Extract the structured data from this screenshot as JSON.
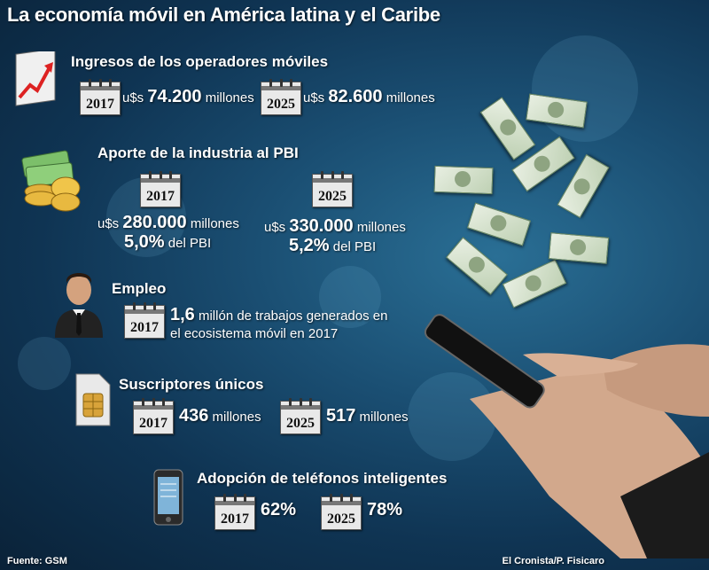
{
  "title": "La economía móvil en América latina y el Caribe",
  "sections": {
    "ingresos": {
      "title": "Ingresos de los operadores móviles",
      "items": [
        {
          "year": "2017",
          "prefix": "u$s",
          "value": "74.200",
          "suffix": "millones"
        },
        {
          "year": "2025",
          "prefix": "u$s",
          "value": "82.600",
          "suffix": "millones"
        }
      ]
    },
    "aporte": {
      "title": "Aporte de la industria al PBI",
      "items": [
        {
          "year": "2017",
          "prefix": "u$s",
          "value": "280.000",
          "suffix": "millones",
          "pct": "5,0%",
          "pct_suffix": "del PBI"
        },
        {
          "year": "2025",
          "prefix": "u$s",
          "value": "330.000",
          "suffix": "millones",
          "pct": "5,2%",
          "pct_suffix": "del PBI"
        }
      ]
    },
    "empleo": {
      "title": "Empleo",
      "year": "2017",
      "line1_value": "1,6",
      "line1_rest": "millón de trabajos generados en",
      "line2": "el ecosistema móvil en 2017"
    },
    "suscriptores": {
      "title": "Suscriptores únicos",
      "items": [
        {
          "year": "2017",
          "value": "436",
          "suffix": "millones"
        },
        {
          "year": "2025",
          "value": "517",
          "suffix": "millones"
        }
      ]
    },
    "adopcion": {
      "title": "Adopción de teléfonos inteligentes",
      "items": [
        {
          "year": "2017",
          "value": "62%"
        },
        {
          "year": "2025",
          "value": "78%"
        }
      ]
    }
  },
  "footer": {
    "source_label": "Fuente:",
    "source": "GSM",
    "credit": "El Cronista/P. Fisicaro"
  },
  "icons": [
    "growth-chart-icon",
    "money-coins-icon",
    "businessman-icon",
    "sim-card-icon",
    "smartphone-icon",
    "calendar-icon"
  ]
}
